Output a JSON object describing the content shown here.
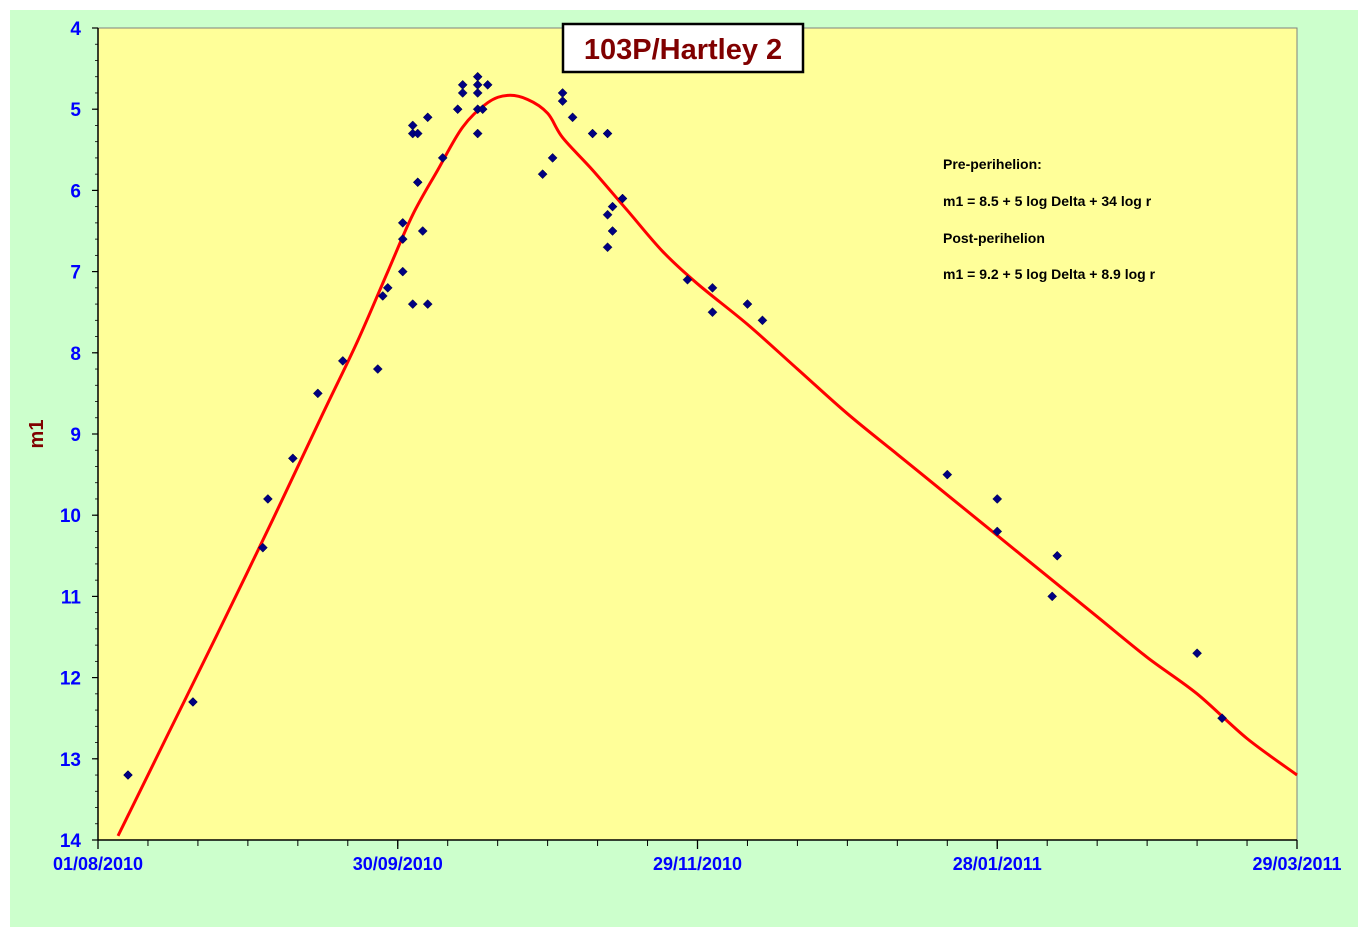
{
  "chart_data": {
    "type": "scatter",
    "title": "103P/Hartley  2",
    "xlabel": "",
    "ylabel": "m1",
    "x_type": "date",
    "xlim": [
      "2010-08-01",
      "2011-03-29"
    ],
    "ylim": [
      4,
      14
    ],
    "y_inverted": true,
    "grid": false,
    "background_color": "#ffff99",
    "outer_background_color": "#ccffcc",
    "tick_color": "#0000ff",
    "ylabel_color": "#800000",
    "marker_color": "#000080",
    "curve_color": "#ff0000",
    "x_tick_labels": [
      {
        "date": "2010-08-01",
        "label": "01/08/2010"
      },
      {
        "date": "2010-09-30",
        "label": "30/09/2010"
      },
      {
        "date": "2010-11-29",
        "label": "29/11/2010"
      },
      {
        "date": "2011-01-28",
        "label": "28/01/2011"
      },
      {
        "date": "2011-03-29",
        "label": "29/03/2011"
      }
    ],
    "y_ticks": [
      4,
      5,
      6,
      7,
      8,
      9,
      10,
      11,
      12,
      13,
      14
    ],
    "annotations": [
      "Pre-perihelion:",
      "m1 = 8.5 + 5 log Delta + 34 log r",
      "Post-perihelion",
      "m1 = 9.2 + 5 log Delta + 8.9 log r"
    ],
    "series": [
      {
        "kind": "observations",
        "points": [
          [
            "2010-08-07",
            13.2
          ],
          [
            "2010-08-20",
            12.3
          ],
          [
            "2010-09-03",
            10.4
          ],
          [
            "2010-09-04",
            9.8
          ],
          [
            "2010-09-09",
            9.3
          ],
          [
            "2010-09-14",
            8.5
          ],
          [
            "2010-09-19",
            8.1
          ],
          [
            "2010-09-26",
            8.2
          ],
          [
            "2010-09-27",
            7.3
          ],
          [
            "2010-09-28",
            7.2
          ],
          [
            "2010-10-01",
            7.0
          ],
          [
            "2010-10-01",
            6.6
          ],
          [
            "2010-10-01",
            6.4
          ],
          [
            "2010-10-03",
            7.4
          ],
          [
            "2010-10-03",
            5.3
          ],
          [
            "2010-10-03",
            5.2
          ],
          [
            "2010-10-04",
            5.3
          ],
          [
            "2010-10-04",
            5.9
          ],
          [
            "2010-10-05",
            6.5
          ],
          [
            "2010-10-06",
            7.4
          ],
          [
            "2010-10-06",
            5.1
          ],
          [
            "2010-10-09",
            5.6
          ],
          [
            "2010-10-12",
            5.0
          ],
          [
            "2010-10-13",
            4.8
          ],
          [
            "2010-10-13",
            4.7
          ],
          [
            "2010-10-16",
            5.3
          ],
          [
            "2010-10-16",
            5.0
          ],
          [
            "2010-10-16",
            4.8
          ],
          [
            "2010-10-16",
            4.7
          ],
          [
            "2010-10-16",
            4.6
          ],
          [
            "2010-10-17",
            5.0
          ],
          [
            "2010-10-18",
            4.7
          ],
          [
            "2010-10-29",
            5.8
          ],
          [
            "2010-10-31",
            5.6
          ],
          [
            "2010-11-02",
            4.9
          ],
          [
            "2010-11-02",
            4.8
          ],
          [
            "2010-11-04",
            5.1
          ],
          [
            "2010-11-08",
            5.3
          ],
          [
            "2010-11-11",
            5.3
          ],
          [
            "2010-11-11",
            6.3
          ],
          [
            "2010-11-11",
            6.7
          ],
          [
            "2010-11-12",
            6.5
          ],
          [
            "2010-11-12",
            6.2
          ],
          [
            "2010-11-14",
            6.1
          ],
          [
            "2010-11-27",
            7.1
          ],
          [
            "2010-12-02",
            7.5
          ],
          [
            "2010-12-02",
            7.2
          ],
          [
            "2010-12-09",
            7.4
          ],
          [
            "2010-12-12",
            7.6
          ],
          [
            "2011-01-18",
            9.5
          ],
          [
            "2011-01-28",
            10.2
          ],
          [
            "2011-01-28",
            9.8
          ],
          [
            "2011-02-08",
            11.0
          ],
          [
            "2011-02-09",
            10.5
          ],
          [
            "2011-03-09",
            11.7
          ],
          [
            "2011-03-14",
            12.5
          ]
        ]
      },
      {
        "kind": "fit_curve",
        "points": [
          [
            "2010-08-05",
            13.95
          ],
          [
            "2010-08-15",
            12.7
          ],
          [
            "2010-08-25",
            11.45
          ],
          [
            "2010-09-05",
            10.05
          ],
          [
            "2010-09-15",
            8.75
          ],
          [
            "2010-09-22",
            7.85
          ],
          [
            "2010-09-28",
            7.0
          ],
          [
            "2010-10-03",
            6.3
          ],
          [
            "2010-10-08",
            5.75
          ],
          [
            "2010-10-13",
            5.22
          ],
          [
            "2010-10-18",
            4.92
          ],
          [
            "2010-10-22",
            4.83
          ],
          [
            "2010-10-26",
            4.88
          ],
          [
            "2010-10-30",
            5.05
          ],
          [
            "2010-11-02",
            5.35
          ],
          [
            "2010-11-08",
            5.75
          ],
          [
            "2010-11-15",
            6.25
          ],
          [
            "2010-11-22",
            6.75
          ],
          [
            "2010-11-29",
            7.15
          ],
          [
            "2010-12-09",
            7.65
          ],
          [
            "2010-12-19",
            8.2
          ],
          [
            "2010-12-29",
            8.75
          ],
          [
            "2011-01-08",
            9.25
          ],
          [
            "2011-01-18",
            9.75
          ],
          [
            "2011-01-28",
            10.25
          ],
          [
            "2011-02-07",
            10.75
          ],
          [
            "2011-02-17",
            11.25
          ],
          [
            "2011-02-27",
            11.75
          ],
          [
            "2011-03-09",
            12.2
          ],
          [
            "2011-03-19",
            12.75
          ],
          [
            "2011-03-29",
            13.2
          ]
        ]
      }
    ]
  }
}
